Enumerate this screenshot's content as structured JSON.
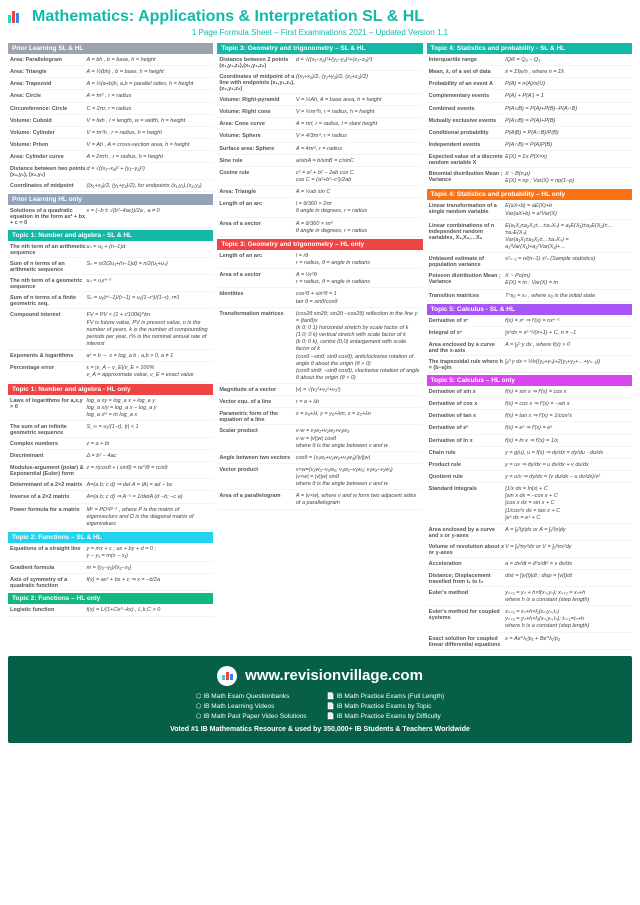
{
  "title": "Mathematics: Applications & Interpretation SL & HL",
  "subtitle": "1 Page Formula Sheet – First Examinations 2021 – Updated Version 1.1",
  "sections": {
    "prior": {
      "h": "Prior Learning SL & HL",
      "rows": [
        [
          "Area: Parallelogram",
          "A = bh , b = base, h = height"
        ],
        [
          "Area: Triangle",
          "A = ½(bh) , b = base, h = height"
        ],
        [
          "Area: Trapezoid",
          "A = ½(a+b)h, a,b = parallel sides, h = height"
        ],
        [
          "Area: Circle",
          "A = πr² , r = radius"
        ],
        [
          "Circumference: Circle",
          "C = 2πr, r = radius"
        ],
        [
          "Volume: Cuboid",
          "V = lwh , l = length, w = width, h = height"
        ],
        [
          "Volume: Cylinder",
          "V = πr²h , r = radius, h = height"
        ],
        [
          "Volume: Prism",
          "V = Ah , A = cross-section area, h = height"
        ],
        [
          "Area: Cylinder curve",
          "A = 2πrh , r = radius, h = height"
        ],
        [
          "Distance between two points (x₁,y₁), (x₂,y₂)",
          "d = √((x₁−x₂)² + (y₁−y₂)²)"
        ],
        [
          "Coordinates of midpoint",
          "((x₁+x₂)/2, (y₁+y₂)/2), for endpoints (x₁,y₁),(x₂,y₂)"
        ]
      ]
    },
    "priorHL": {
      "h": "Prior Learning HL only",
      "rows": [
        [
          "Solutions of a quadratic equation in the form ax² + bx + c = 0",
          "x = (−b ± √(b²−4ac))/2a , a ≠ 0"
        ]
      ]
    },
    "t1": {
      "h": "Topic 1: Number and algebra - SL & HL",
      "rows": [
        [
          "The nth term of an arithmetic sequence",
          "uₙ = u₁ + (n−1)d"
        ],
        [
          "Sum of n terms of an arithmetic sequence",
          "Sₙ = n/2(2u₁+(n−1)d) = n/2(u₁+uₙ)"
        ],
        [
          "The nth term of a geometric sequence",
          "uₙ = u₁rⁿ⁻¹"
        ],
        [
          "Sum of n terms of a finite geometric seq.",
          "Sₙ = u₁(rⁿ−1)/(r−1) = u₁(1−rⁿ)/(1−r), r≠1"
        ],
        [
          "Compound interest",
          "FV = PV × (1 + r/100k)^kn\nFV is future value, PV is present value, n is the number of years, k is the number of compounding periods per year, r% is the nominal annual rate of interest"
        ],
        [
          "Exponents & logarithms",
          "aˣ = b ⇔ x = log_a b , a,b > 0, a ≠ 1"
        ],
        [
          "Percentage error",
          "ε = |v_A − v_E|/v_E × 100%\nv_A = approximate value, v_E = exact value"
        ]
      ]
    },
    "t1HL": {
      "h": "Topic 1: Number and algebra - HL only",
      "rows": [
        [
          "Laws of logarithms for a,x,y > 0",
          "log_a xy = log_a x + log_a y\nlog_a x/y = log_a x − log_a y\nlog_a xᵐ = m log_a x"
        ],
        [
          "The sum of an infinite geometric sequence",
          "S_∞ = u₁/(1−r), |r| < 1"
        ],
        [
          "Complex numbers",
          "z = a + bi"
        ],
        [
          "Discriminant",
          "Δ = b² − 4ac"
        ],
        [
          "Modulus-argument (polar) & Exponential (Euler) form",
          "z = r(cosθ + i sinθ) = re^iθ = rcisθ"
        ],
        [
          "Determinant of a 2×2 matrix",
          "A=(a b; c d) ⇒ det A = |A| = ad − bc"
        ],
        [
          "Inverse of a 2×2 matrix",
          "A=(a b; c d) ⇒ A⁻¹ = 1/detA (d −b; −c a)"
        ],
        [
          "Power formula for a matrix",
          "Mⁿ = PDⁿP⁻¹ , where P is the matrix of eigenvectors and D is the diagonal matrix of eigenvalues"
        ]
      ]
    },
    "t2": {
      "h": "Topic 2: Functions – SL & HL",
      "rows": [
        [
          "Equations of a straight line",
          "y = mx + c ; ax + by + d = 0 ;\ny − y₁ = m(x − x₁)"
        ],
        [
          "Gradient formula",
          "m = (y₂−y₁)/(x₂−x₁)"
        ],
        [
          "Axis of symmetry of a quadratic function",
          "f(x) = ax² + bx + c ⇒ x = −b/2a"
        ]
      ]
    },
    "t2HL": {
      "h": "Topic 2: Functions – HL only",
      "rows": [
        [
          "Logistic function",
          "f(x) = L/(1+Ce^−kx) , L,k,C > 0"
        ]
      ]
    },
    "t3": {
      "h": "Topic 3: Geometry and trigonometry – SL & HL",
      "rows": [
        [
          "Distance between 2 points (x₁,y₁,z₁),(x₂,y₂,z₂)",
          "d = √((x₁−x₂)²+(y₁−y₂)²+(z₁−z₂)²)"
        ],
        [
          "Coordinates of midpoint of a line with endpoints (x₁,y₁,z₁),(x₂,y₂,z₂)",
          "((x₁+x₂)/2, (y₁+y₂)/2, (z₁+z₂)/2)"
        ],
        [
          "Volume: Right-pyramid",
          "V = ⅓Ah, A = base area, h = height"
        ],
        [
          "Volume: Right cone",
          "V = ⅓πr²h, r = radius, h = height"
        ],
        [
          "Area: Cone curve",
          "A = πrl, r = radius, l = slant height"
        ],
        [
          "Volume: Sphere",
          "V = 4/3πr³, r = radius"
        ],
        [
          "Surface area: Sphere",
          "A = 4πr², r = radius"
        ],
        [
          "Sine rule",
          "a/sinA = b/sinB = c/sinC"
        ],
        [
          "Cosine rule",
          "c² = a² + b² − 2ab cos C\ncos C = (a²+b²−c²)/2ab"
        ],
        [
          "Area: Triangle",
          "A = ½ab sin C"
        ],
        [
          "Length of an arc",
          "l = θ/360 × 2πr\nθ angle in degrees, r = radius"
        ],
        [
          "Area of a sector",
          "A = θ/360 × πr²\nθ angle in degrees, r = radius"
        ]
      ]
    },
    "t3HL": {
      "h": "Topic 3: Geometry and trigonometry – HL only",
      "rows": [
        [
          "Length of an arc",
          "l = rθ\nr = radius, θ = angle in radians"
        ],
        [
          "Area of a sector",
          "A = ½r²θ\nr = radius, θ = angle in radians"
        ],
        [
          "Identities",
          "cos²θ + sin²θ = 1\ntan θ = sinθ/cosθ"
        ],
        [
          "Transformation matrices",
          "(cos2θ sin2θ; sin2θ −cos2θ) reflection in the line y = (tanθ)x\n(k 0; 0 1) horizontal stretch by scale factor of k\n(1 0; 0 k) vertical stretch with scale factor of k\n(k 0; 0 k), centre (0,0) enlargement with scale factor of k\n(cosθ −sinθ; sinθ cosθ), anticlockwise rotation of angle θ about the origin (θ > 0)\n(cosθ sinθ; −sinθ cosθ), clockwise rotation of angle θ about the origin (θ > 0)"
        ],
        [
          "Magnitude of a vector",
          "|v| = √(v₁²+v₂²+v₃²)"
        ],
        [
          "Vector equ. of a line",
          "r = a + λb"
        ],
        [
          "Parametric form of the equation of a line",
          "x = x₀+λl, y = y₀+λm, z = z₀+λn"
        ],
        [
          "Scalar product",
          "v·w = v₁w₁+v₂w₂+v₃w₃\nv·w = |v||w| cosθ\nwhere θ is the angle between v and w"
        ],
        [
          "Angle between two vectors",
          "cosθ = (v₁w₁+v₂w₂+v₃w₃)/|v||w|"
        ],
        [
          "Vector product",
          "v×w=(v₂w₃−v₃w₂; v₃w₁−v₁w₃; v₁w₂−v₂w₁)\n|v×w| = |v||w| sinθ\nwhere θ is the angle between v and w"
        ],
        [
          "Area of a parallelogram",
          "A = |v×w|, where v and w form two adjacent sides of a parallelogram"
        ]
      ]
    },
    "t4": {
      "h": "Topic 4: Statistics and probability - SL & HL",
      "rows": [
        [
          "Interquartile range",
          "IQR = Q₃ − Q₁"
        ],
        [
          "Mean, x̄, of a set of data",
          "x̄ = Σfᵢxᵢ/n , where n = Σfᵢ"
        ],
        [
          "Probability of an event A",
          "P(A) = n(A)/n(U)"
        ],
        [
          "Complementary events",
          "P(A) + P(A') = 1"
        ],
        [
          "Combined events",
          "P(A∪B) = P(A)+P(B)−P(A∩B)"
        ],
        [
          "Mutually exclusive events",
          "P(A∪B) = P(A)+P(B)"
        ],
        [
          "Conditional probability",
          "P(A|B) = P(A∩B)/P(B)"
        ],
        [
          "Independent events",
          "P(A∩B) = P(A)P(B)"
        ],
        [
          "Expected value of a discrete random variable X",
          "E(X) = Σx P(X=x)"
        ],
        [
          "Binomial distribution Mean ; Variance",
          "X ~ B(n,p)\nE(X) = np ; Var(X) = np(1−p)"
        ]
      ]
    },
    "t4HL": {
      "h": "Topic 4: Statistics and probability – HL only",
      "rows": [
        [
          "Linear transformation of a single random variable",
          "E(aX+b) = aE(X)+b\nVar(aX+b) = a²Var(X)"
        ],
        [
          "Linear combinations of n independent random variables, X₁,X₂,…Xₙ",
          "E(a₁X₁±a₂X₂±…±aₙXₙ) = a₁E(X₁)±a₂E(X₂)±…±aₙE(Xₙ)\nVar(a₁X₁±a₂X₂±…±aₙXₙ) = a₁²Var(X₁)+a₂²Var(X₂)+…"
        ],
        [
          "Unbiased estimate of population variance",
          "s²ₙ₋₁ = n/(n−1) s²ₙ (Sample statistics)"
        ],
        [
          "Poisson distribution Mean ; Variance",
          "X ~ Po(m)\nE(X) = m ; Var(X) = m"
        ],
        [
          "Transition matrices",
          "Tⁿs₀ = sₙ , where s₀ is the initial state"
        ]
      ]
    },
    "t5": {
      "h": "Topic 5: Calculus - SL & HL",
      "rows": [
        [
          "Derivative of xⁿ",
          "f(x) = xⁿ ⇒ f'(x) = nxⁿ⁻¹"
        ],
        [
          "Integral of xⁿ",
          "∫xⁿdx = xⁿ⁺¹/(n+1) + C, n ≠ −1"
        ],
        [
          "Area enclosed by a curve and the x-axis",
          "A = ∫ₐᵇ y dx , where f(x) > 0"
        ],
        [
          "The trapezoidal rule where h = (b−a)/n",
          "∫ₐᵇ y dx ≈ ½h((y₀+yₙ)+2(y₁+y₂+…+yₙ₋₁))"
        ]
      ]
    },
    "t5HL": {
      "h": "Topic 5: Calculus – HL only",
      "rows": [
        [
          "Derivative of sin x",
          "f(x) = sin x ⇒ f'(x) = cos x"
        ],
        [
          "Derivative of cos x",
          "f(x) = cos x ⇒ f'(x) = −sin x"
        ],
        [
          "Derivative of tan x",
          "f(x) = tan x ⇒ f'(x) = 1/cos²x"
        ],
        [
          "Derivative of eˣ",
          "f(x) = eˣ ⇒ f'(x) = eˣ"
        ],
        [
          "Derivative of ln x",
          "f(x) = ln x ⇒ f'(x) = 1/x"
        ],
        [
          "Chain rule",
          "y = g(u), u = f(x) ⇒ dy/dx = dy/du · du/dx"
        ],
        [
          "Product rule",
          "y = uv ⇒ dy/dx = u dv/dx + v du/dx"
        ],
        [
          "Quotient rule",
          "y = u/v ⇒ dy/dx = (v du/dx − u dv/dx)/v²"
        ],
        [
          "Standard integrals",
          "∫1/x dx = ln|x| + C\n∫sin x dx = −cos x + C\n∫cos x dx = sin x + C\n∫1/cos²x dx = tan x + C\n∫eˣ dx = eˣ + C"
        ],
        [
          "Area enclosed by a curve and x or y-axes",
          "A = ∫ₐᵇ|y|dx or A = ∫ₐᵇ|x|dy"
        ],
        [
          "Volume of revolution about x or y-axes",
          "V = ∫ₐᵇπy²dx or V = ∫ₐᵇπx²dy"
        ],
        [
          "Acceleration",
          "a = dv/dt = d²s/dt² = v dv/ds"
        ],
        [
          "Distance; Displacement travelled from t₁ to t₂",
          "dist = ∫|v(t)|dt ; disp = ∫v(t)dt"
        ],
        [
          "Euler's method",
          "yₙ₊₁ = yₙ + h×f(xₙ,yₙ); xₙ₊₁ = xₙ+h\nwhere h is a constant (step length)"
        ],
        [
          "Euler's method for coupled systems",
          "xₙ₊₁ = xₙ+h×f₁(xₙ,yₙ,tₙ)\nyₙ₊₁ = yₙ+h×f₂(xₙ,yₙ,tₙ); tₙ₊₁=tₙ+h\nwhere h is a constant (step length)"
        ],
        [
          "Exact solution for coupled linear differential equations",
          "x = Ae^λ₁ᵗp₁ + Be^λ₂ᵗp₂"
        ]
      ]
    }
  },
  "footer": {
    "url": "www.revisionvillage.com",
    "links": [
      [
        "IB Math Exam Questionbanks",
        "IB Math Learning Videos",
        "IB Math Past Paper Video Solutions"
      ],
      [
        "IB Math Practice Exams (Full Length)",
        "IB Math Practice Exams by Topic",
        "IB Math Practice Exams by Difficulty"
      ]
    ],
    "tag": "Voted #1 IB Mathematics Resource & used by 350,000+ IB Students & Teachers Worldwide"
  }
}
